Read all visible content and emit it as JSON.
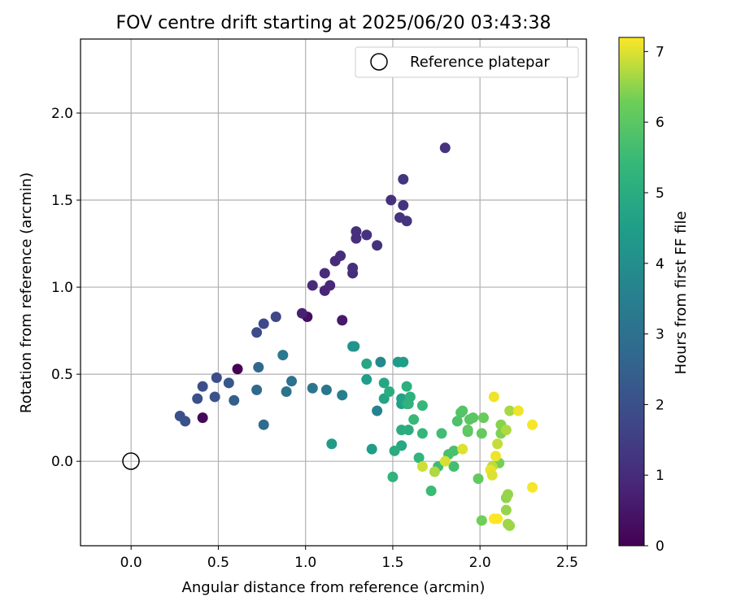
{
  "chart_data": {
    "type": "scatter",
    "title": "FOV centre drift starting at 2025/06/20 03:43:38",
    "xlabel": "Angular distance from reference (arcmin)",
    "ylabel": "Rotation from reference (arcmin)",
    "xlim": [
      -0.29,
      2.61
    ],
    "ylim": [
      -0.485,
      2.425
    ],
    "xticks": [
      "0.0",
      "0.5",
      "1.0",
      "1.5",
      "2.0",
      "2.5"
    ],
    "yticks": [
      "0.0",
      "0.5",
      "1.0",
      "1.5",
      "2.0"
    ],
    "grid": true,
    "legend": {
      "position": "top-right",
      "entries": [
        {
          "label": "Reference platepar",
          "marker": "open-circle"
        }
      ]
    },
    "reference_point": {
      "x": 0.0,
      "y": 0.0
    },
    "colorbar": {
      "label": "Hours from first FF file",
      "min": 0,
      "max": 7.2,
      "ticks": [
        "0",
        "1",
        "2",
        "3",
        "4",
        "5",
        "6",
        "7"
      ],
      "colormap": "viridis"
    },
    "points": [
      {
        "x": 0.61,
        "y": 0.53,
        "t": 0.05
      },
      {
        "x": 0.41,
        "y": 0.25,
        "t": 0.15
      },
      {
        "x": 1.01,
        "y": 0.83,
        "t": 0.3
      },
      {
        "x": 1.21,
        "y": 0.81,
        "t": 0.55
      },
      {
        "x": 0.98,
        "y": 0.85,
        "t": 0.75
      },
      {
        "x": 1.11,
        "y": 0.98,
        "t": 0.85
      },
      {
        "x": 1.14,
        "y": 1.01,
        "t": 0.9
      },
      {
        "x": 1.04,
        "y": 1.01,
        "t": 0.95
      },
      {
        "x": 1.11,
        "y": 1.08,
        "t": 1.0
      },
      {
        "x": 1.17,
        "y": 1.15,
        "t": 1.02
      },
      {
        "x": 1.2,
        "y": 1.18,
        "t": 1.05
      },
      {
        "x": 1.27,
        "y": 1.08,
        "t": 1.07
      },
      {
        "x": 1.27,
        "y": 1.11,
        "t": 1.1
      },
      {
        "x": 1.29,
        "y": 1.28,
        "t": 1.12
      },
      {
        "x": 1.29,
        "y": 1.32,
        "t": 1.13
      },
      {
        "x": 1.35,
        "y": 1.3,
        "t": 1.14
      },
      {
        "x": 1.41,
        "y": 1.24,
        "t": 1.16
      },
      {
        "x": 1.49,
        "y": 1.5,
        "t": 1.18
      },
      {
        "x": 1.54,
        "y": 1.4,
        "t": 1.2
      },
      {
        "x": 1.56,
        "y": 1.47,
        "t": 1.22
      },
      {
        "x": 1.58,
        "y": 1.38,
        "t": 1.24
      },
      {
        "x": 1.56,
        "y": 1.62,
        "t": 1.25
      },
      {
        "x": 1.8,
        "y": 1.8,
        "t": 1.2
      },
      {
        "x": 0.83,
        "y": 0.83,
        "t": 1.75
      },
      {
        "x": 0.76,
        "y": 0.79,
        "t": 1.8
      },
      {
        "x": 0.72,
        "y": 0.74,
        "t": 1.85
      },
      {
        "x": 0.49,
        "y": 0.48,
        "t": 1.9
      },
      {
        "x": 0.41,
        "y": 0.43,
        "t": 1.95
      },
      {
        "x": 0.38,
        "y": 0.36,
        "t": 2.0
      },
      {
        "x": 0.28,
        "y": 0.26,
        "t": 2.0
      },
      {
        "x": 0.31,
        "y": 0.23,
        "t": 2.05
      },
      {
        "x": 0.48,
        "y": 0.37,
        "t": 2.1
      },
      {
        "x": 0.56,
        "y": 0.45,
        "t": 2.2
      },
      {
        "x": 0.59,
        "y": 0.35,
        "t": 2.4
      },
      {
        "x": 0.73,
        "y": 0.54,
        "t": 2.7
      },
      {
        "x": 0.72,
        "y": 0.41,
        "t": 2.75
      },
      {
        "x": 0.76,
        "y": 0.21,
        "t": 2.85
      },
      {
        "x": 0.92,
        "y": 0.46,
        "t": 3.05
      },
      {
        "x": 0.89,
        "y": 0.4,
        "t": 3.1
      },
      {
        "x": 1.04,
        "y": 0.42,
        "t": 3.15
      },
      {
        "x": 1.12,
        "y": 0.41,
        "t": 3.2
      },
      {
        "x": 0.87,
        "y": 0.61,
        "t": 3.3
      },
      {
        "x": 1.21,
        "y": 0.38,
        "t": 3.5
      },
      {
        "x": 1.41,
        "y": 0.29,
        "t": 3.6
      },
      {
        "x": 1.43,
        "y": 0.57,
        "t": 3.8
      },
      {
        "x": 1.27,
        "y": 0.66,
        "t": 4.1
      },
      {
        "x": 1.28,
        "y": 0.66,
        "t": 4.2
      },
      {
        "x": 1.15,
        "y": 0.1,
        "t": 4.4
      },
      {
        "x": 1.38,
        "y": 0.07,
        "t": 4.5
      },
      {
        "x": 1.35,
        "y": 0.47,
        "t": 4.5
      },
      {
        "x": 1.53,
        "y": 0.57,
        "t": 4.45
      },
      {
        "x": 1.56,
        "y": 0.57,
        "t": 4.5
      },
      {
        "x": 1.55,
        "y": 0.33,
        "t": 4.55
      },
      {
        "x": 1.55,
        "y": 0.36,
        "t": 4.6
      },
      {
        "x": 1.45,
        "y": 0.36,
        "t": 4.7
      },
      {
        "x": 1.45,
        "y": 0.45,
        "t": 4.8
      },
      {
        "x": 1.35,
        "y": 0.56,
        "t": 4.8
      },
      {
        "x": 1.55,
        "y": 0.09,
        "t": 4.85
      },
      {
        "x": 1.51,
        "y": 0.06,
        "t": 4.95
      },
      {
        "x": 1.48,
        "y": 0.4,
        "t": 5.0
      },
      {
        "x": 1.55,
        "y": 0.18,
        "t": 5.0
      },
      {
        "x": 1.58,
        "y": 0.33,
        "t": 5.0
      },
      {
        "x": 1.59,
        "y": 0.18,
        "t": 5.05
      },
      {
        "x": 1.58,
        "y": 0.43,
        "t": 5.1
      },
      {
        "x": 1.6,
        "y": 0.37,
        "t": 5.15
      },
      {
        "x": 1.59,
        "y": 0.33,
        "t": 5.2
      },
      {
        "x": 1.5,
        "y": -0.09,
        "t": 5.25
      },
      {
        "x": 1.65,
        "y": 0.02,
        "t": 5.3
      },
      {
        "x": 1.67,
        "y": 0.16,
        "t": 5.35
      },
      {
        "x": 1.67,
        "y": 0.32,
        "t": 5.4
      },
      {
        "x": 1.62,
        "y": 0.24,
        "t": 5.45
      },
      {
        "x": 1.72,
        "y": -0.17,
        "t": 5.5
      },
      {
        "x": 1.76,
        "y": -0.03,
        "t": 5.55
      },
      {
        "x": 1.78,
        "y": 0.16,
        "t": 5.6
      },
      {
        "x": 1.85,
        "y": -0.03,
        "t": 5.65
      },
      {
        "x": 1.82,
        "y": 0.04,
        "t": 5.7
      },
      {
        "x": 1.85,
        "y": 0.06,
        "t": 5.75
      },
      {
        "x": 1.87,
        "y": 0.23,
        "t": 5.8
      },
      {
        "x": 1.89,
        "y": 0.28,
        "t": 5.85
      },
      {
        "x": 1.9,
        "y": 0.29,
        "t": 5.9
      },
      {
        "x": 1.93,
        "y": 0.17,
        "t": 5.95
      },
      {
        "x": 1.94,
        "y": 0.24,
        "t": 6.0
      },
      {
        "x": 1.96,
        "y": 0.25,
        "t": 6.0
      },
      {
        "x": 1.93,
        "y": 0.18,
        "t": 6.05
      },
      {
        "x": 1.99,
        "y": -0.1,
        "t": 6.1
      },
      {
        "x": 2.01,
        "y": 0.16,
        "t": 6.15
      },
      {
        "x": 2.02,
        "y": 0.25,
        "t": 6.2
      },
      {
        "x": 2.01,
        "y": -0.34,
        "t": 6.3
      },
      {
        "x": 2.11,
        "y": -0.01,
        "t": 6.35
      },
      {
        "x": 2.12,
        "y": 0.16,
        "t": 6.4
      },
      {
        "x": 2.12,
        "y": 0.21,
        "t": 6.45
      },
      {
        "x": 2.15,
        "y": -0.21,
        "t": 6.5
      },
      {
        "x": 2.16,
        "y": -0.19,
        "t": 6.55
      },
      {
        "x": 2.15,
        "y": -0.28,
        "t": 6.55
      },
      {
        "x": 2.16,
        "y": -0.36,
        "t": 6.6
      },
      {
        "x": 2.17,
        "y": -0.37,
        "t": 6.6
      },
      {
        "x": 2.17,
        "y": 0.29,
        "t": 6.65
      },
      {
        "x": 2.15,
        "y": 0.18,
        "t": 6.7
      },
      {
        "x": 2.07,
        "y": -0.03,
        "t": 6.8
      },
      {
        "x": 2.1,
        "y": 0.1,
        "t": 6.85
      },
      {
        "x": 1.74,
        "y": -0.06,
        "t": 6.7
      },
      {
        "x": 1.67,
        "y": -0.03,
        "t": 6.9
      },
      {
        "x": 1.8,
        "y": 0.0,
        "t": 6.95
      },
      {
        "x": 1.9,
        "y": 0.07,
        "t": 7.0
      },
      {
        "x": 2.06,
        "y": -0.05,
        "t": 7.05
      },
      {
        "x": 2.07,
        "y": -0.08,
        "t": 7.0
      },
      {
        "x": 2.09,
        "y": 0.03,
        "t": 7.1
      },
      {
        "x": 2.08,
        "y": 0.37,
        "t": 7.1
      },
      {
        "x": 2.22,
        "y": 0.29,
        "t": 7.1
      },
      {
        "x": 2.3,
        "y": 0.21,
        "t": 7.15
      },
      {
        "x": 2.3,
        "y": -0.15,
        "t": 7.15
      },
      {
        "x": 2.08,
        "y": -0.33,
        "t": 7.2
      },
      {
        "x": 2.1,
        "y": -0.33,
        "t": 7.2
      }
    ]
  }
}
